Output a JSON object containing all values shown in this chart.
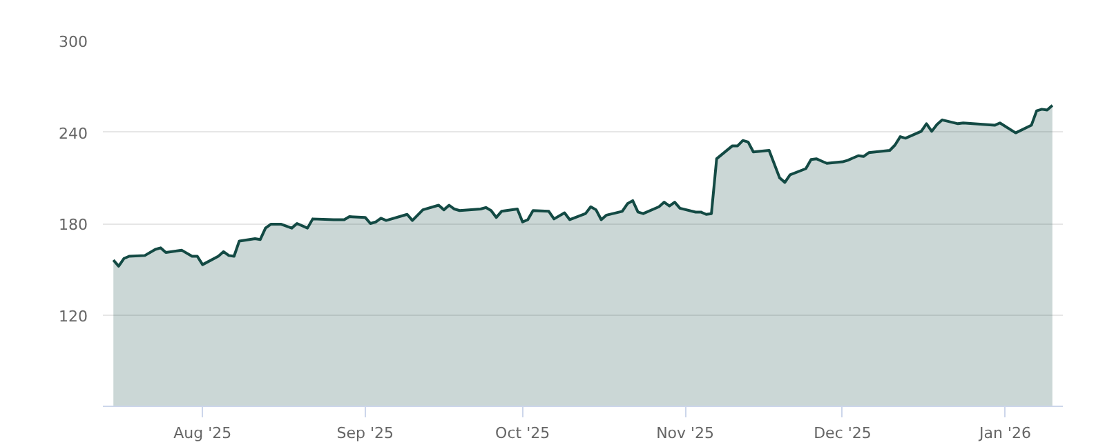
{
  "chart_data": {
    "type": "area",
    "color": "#134a44",
    "x": [
      "2025-07-15",
      "2025-07-16",
      "2025-07-17",
      "2025-07-18",
      "2025-07-21",
      "2025-07-23",
      "2025-07-24",
      "2025-07-25",
      "2025-07-28",
      "2025-07-30",
      "2025-07-31",
      "2025-08-01",
      "2025-08-04",
      "2025-08-05",
      "2025-08-06",
      "2025-08-07",
      "2025-08-08",
      "2025-08-11",
      "2025-08-12",
      "2025-08-13",
      "2025-08-14",
      "2025-08-16",
      "2025-08-18",
      "2025-08-19",
      "2025-08-21",
      "2025-08-22",
      "2025-08-26",
      "2025-08-28",
      "2025-08-29",
      "2025-09-01",
      "2025-09-02",
      "2025-09-03",
      "2025-09-04",
      "2025-09-05",
      "2025-09-09",
      "2025-09-10",
      "2025-09-12",
      "2025-09-15",
      "2025-09-16",
      "2025-09-17",
      "2025-09-18",
      "2025-09-19",
      "2025-09-23",
      "2025-09-24",
      "2025-09-25",
      "2025-09-26",
      "2025-09-27",
      "2025-09-30",
      "2025-10-01",
      "2025-10-02",
      "2025-10-03",
      "2025-10-06",
      "2025-10-07",
      "2025-10-09",
      "2025-10-10",
      "2025-10-13",
      "2025-10-14",
      "2025-10-15",
      "2025-10-16",
      "2025-10-17",
      "2025-10-20",
      "2025-10-21",
      "2025-10-22",
      "2025-10-23",
      "2025-10-24",
      "2025-10-27",
      "2025-10-28",
      "2025-10-29",
      "2025-10-30",
      "2025-10-31",
      "2025-11-03",
      "2025-11-04",
      "2025-11-05",
      "2025-11-06",
      "2025-11-07",
      "2025-11-10",
      "2025-11-11",
      "2025-11-12",
      "2025-11-13",
      "2025-11-14",
      "2025-11-17",
      "2025-11-19",
      "2025-11-20",
      "2025-11-21",
      "2025-11-24",
      "2025-11-25",
      "2025-11-26",
      "2025-11-27",
      "2025-11-28",
      "2025-12-01",
      "2025-12-02",
      "2025-12-03",
      "2025-12-04",
      "2025-12-05",
      "2025-12-06",
      "2025-12-10",
      "2025-12-11",
      "2025-12-12",
      "2025-12-13",
      "2025-12-16",
      "2025-12-17",
      "2025-12-18",
      "2025-12-19",
      "2025-12-20",
      "2025-12-23",
      "2025-12-24",
      "2025-12-30",
      "2025-12-31",
      "2026-01-03",
      "2026-01-06",
      "2026-01-07",
      "2026-01-08",
      "2026-01-09",
      "2026-01-10"
    ],
    "values": [
      156,
      152,
      157,
      158.5,
      159,
      163,
      164,
      161,
      162.5,
      158.5,
      158.5,
      153,
      158.5,
      161.5,
      159,
      158.5,
      168.5,
      170,
      169.5,
      177,
      179.5,
      179.5,
      177,
      180,
      177,
      183,
      182.5,
      182.5,
      184.5,
      184,
      180,
      181,
      183.5,
      182,
      186,
      182,
      189,
      192,
      189,
      192,
      189.5,
      188.5,
      189.5,
      190.5,
      188.5,
      184,
      188,
      189.5,
      181,
      182.5,
      188.5,
      188,
      183,
      187,
      182.5,
      186.5,
      191,
      189,
      182.5,
      185.5,
      188,
      193,
      195,
      187.5,
      186.5,
      191,
      194,
      191.5,
      194,
      190,
      187.5,
      187.5,
      186,
      186.5,
      222.5,
      231,
      231,
      234.5,
      233.5,
      227,
      228,
      210,
      207,
      212,
      216,
      222,
      222.5,
      221,
      219.5,
      220.5,
      221.5,
      223,
      224.5,
      224,
      226.5,
      228,
      231.5,
      237,
      236,
      240.5,
      245.5,
      240.5,
      245,
      248,
      245.5,
      246,
      244.5,
      246,
      239.5,
      244.5,
      254,
      255,
      254.5,
      257.5
    ],
    "xlim": [
      "2025-07-13",
      "2026-01-12"
    ],
    "ylim": [
      60,
      300
    ],
    "xticks": [
      {
        "value": "2025-08-01",
        "label": "Aug '25"
      },
      {
        "value": "2025-09-01",
        "label": "Sep '25"
      },
      {
        "value": "2025-10-01",
        "label": "Oct '25"
      },
      {
        "value": "2025-11-01",
        "label": "Nov '25"
      },
      {
        "value": "2025-12-01",
        "label": "Dec '25"
      },
      {
        "value": "2026-01-01",
        "label": "Jan '26"
      }
    ],
    "yticks": [
      120,
      180,
      240,
      300
    ],
    "grid": "y"
  }
}
